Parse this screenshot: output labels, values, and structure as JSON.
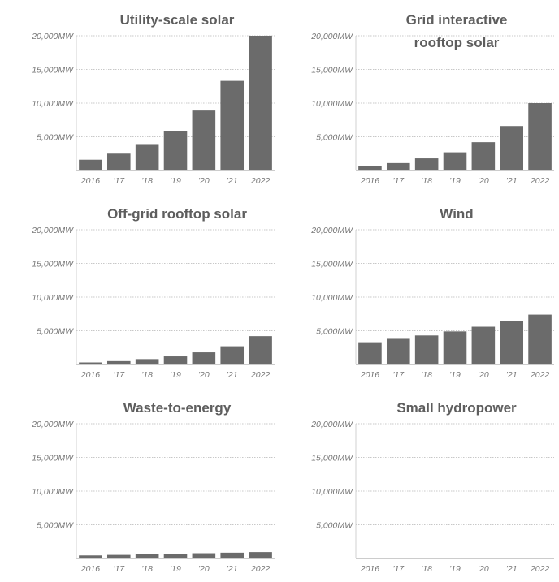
{
  "chart_data": [
    {
      "type": "bar",
      "title": [
        "Utility-scale solar"
      ],
      "categories": [
        "2016",
        "'17",
        "'18",
        "'19",
        "'20",
        "'21",
        "2022"
      ],
      "values": [
        1600,
        2500,
        3800,
        5900,
        8900,
        13300,
        20000
      ],
      "yticks": [
        "5,000MW",
        "10,000MW",
        "15,000MW",
        "20,000MW"
      ],
      "ylim": [
        0,
        20000
      ],
      "grid": true,
      "bar_color": "#6b6b6b"
    },
    {
      "type": "bar",
      "title": [
        "Grid interactive",
        "rooftop solar"
      ],
      "categories": [
        "2016",
        "'17",
        "'18",
        "'19",
        "'20",
        "'21",
        "2022"
      ],
      "values": [
        700,
        1100,
        1800,
        2700,
        4200,
        6600,
        10000
      ],
      "yticks": [
        "5,000MW",
        "10,000MW",
        "15,000MW",
        "20,000MW"
      ],
      "ylim": [
        0,
        20000
      ],
      "grid": true,
      "bar_color": "#6b6b6b"
    },
    {
      "type": "bar",
      "title": [
        "Off-grid rooftop solar"
      ],
      "categories": [
        "2016",
        "'17",
        "'18",
        "'19",
        "'20",
        "'21",
        "2022"
      ],
      "values": [
        300,
        500,
        800,
        1200,
        1800,
        2700,
        4200
      ],
      "yticks": [
        "5,000MW",
        "10,000MW",
        "15,000MW",
        "20,000MW"
      ],
      "ylim": [
        0,
        20000
      ],
      "grid": true,
      "bar_color": "#6b6b6b"
    },
    {
      "type": "bar",
      "title": [
        "Wind"
      ],
      "categories": [
        "2016",
        "'17",
        "'18",
        "'19",
        "'20",
        "'21",
        "2022"
      ],
      "values": [
        3300,
        3800,
        4300,
        4900,
        5600,
        6400,
        7400
      ],
      "yticks": [
        "5,000MW",
        "10,000MW",
        "15,000MW",
        "20,000MW"
      ],
      "ylim": [
        0,
        20000
      ],
      "grid": true,
      "bar_color": "#6b6b6b"
    },
    {
      "type": "bar",
      "title": [
        "Waste-to-energy"
      ],
      "categories": [
        "2016",
        "'17",
        "'18",
        "'19",
        "'20",
        "'21",
        "2022"
      ],
      "values": [
        450,
        530,
        620,
        700,
        780,
        860,
        950
      ],
      "yticks": [
        "5,000MW",
        "10,000MW",
        "15,000MW",
        "20,000MW"
      ],
      "ylim": [
        0,
        20000
      ],
      "grid": true,
      "bar_color": "#6b6b6b"
    },
    {
      "type": "bar",
      "title": [
        "Small hydropower"
      ],
      "categories": [
        "2016",
        "'17",
        "'18",
        "'19",
        "'20",
        "'21",
        "2022"
      ],
      "values": [
        40,
        50,
        60,
        70,
        80,
        90,
        100
      ],
      "yticks": [
        "5,000MW",
        "10,000MW",
        "15,000MW",
        "20,000MW"
      ],
      "ylim": [
        0,
        20000
      ],
      "grid": true,
      "bar_color": "#6b6b6b"
    }
  ]
}
